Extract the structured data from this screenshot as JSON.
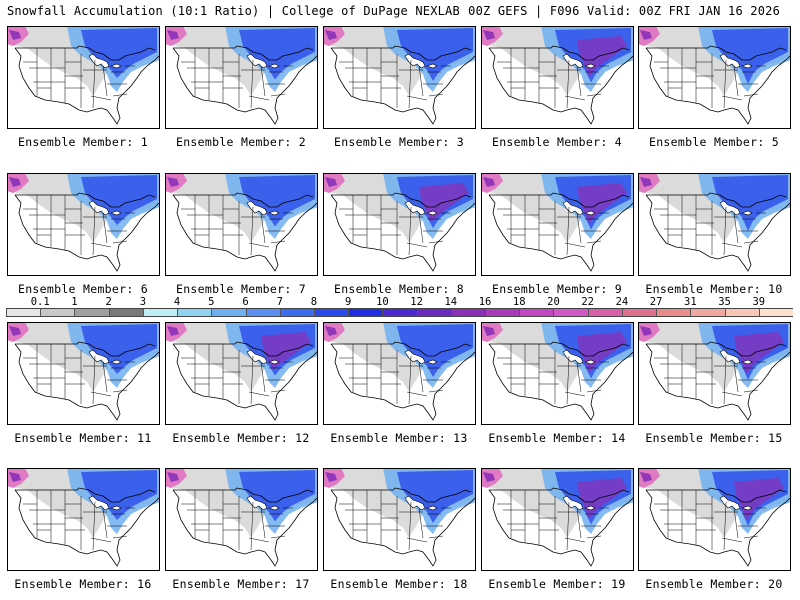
{
  "header": {
    "left_title": "Snowfall Accumulation (10:1 Ratio) | College of DuPage NEXLAB",
    "right_title": "00Z GEFS | F096 Valid: 00Z FRI JAN 16 2026"
  },
  "panels": [
    {
      "label": "Ensemble Member: 1"
    },
    {
      "label": "Ensemble Member: 2"
    },
    {
      "label": "Ensemble Member: 3"
    },
    {
      "label": "Ensemble Member: 4"
    },
    {
      "label": "Ensemble Member: 5"
    },
    {
      "label": "Ensemble Member: 6"
    },
    {
      "label": "Ensemble Member: 7"
    },
    {
      "label": "Ensemble Member: 8"
    },
    {
      "label": "Ensemble Member: 9"
    },
    {
      "label": "Ensemble Member: 10"
    },
    {
      "label": "Ensemble Member: 11"
    },
    {
      "label": "Ensemble Member: 12"
    },
    {
      "label": "Ensemble Member: 13"
    },
    {
      "label": "Ensemble Member: 14"
    },
    {
      "label": "Ensemble Member: 15"
    },
    {
      "label": "Ensemble Member: 16"
    },
    {
      "label": "Ensemble Member: 17"
    },
    {
      "label": "Ensemble Member: 18"
    },
    {
      "label": "Ensemble Member: 19"
    },
    {
      "label": "Ensemble Member: 20"
    }
  ],
  "colorbar": {
    "labels": [
      "0.1",
      "1",
      "2",
      "3",
      "4",
      "5",
      "6",
      "7",
      "8",
      "9",
      "10",
      "12",
      "14",
      "16",
      "18",
      "20",
      "22",
      "24",
      "27",
      "31",
      "35",
      "39"
    ],
    "colors": [
      "#e6e6e6",
      "#c8c8c8",
      "#a0a0a0",
      "#7a7a7a",
      "#bfeef7",
      "#8fd3f0",
      "#6eaff0",
      "#5a8ef2",
      "#3d6cf0",
      "#2a4bea",
      "#1f2ee0",
      "#4a2ad0",
      "#6a2ac0",
      "#8a30b8",
      "#a83cb8",
      "#c048c0",
      "#d058c8",
      "#d860a8",
      "#e07090",
      "#e88c8c",
      "#f0a8a0",
      "#f8c8b4",
      "#fde0d0"
    ]
  },
  "colors": {
    "snow_light": "#c8c8c8",
    "snow_mid": "#6eaff0",
    "snow_heavy": "#2a4bea",
    "snow_extreme": "#8a30b8",
    "snow_pink": "#e070c0"
  }
}
